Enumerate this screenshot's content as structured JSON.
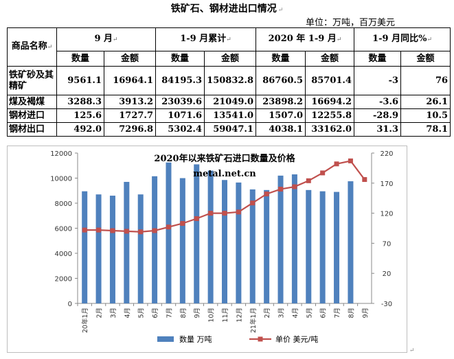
{
  "document": {
    "title": "铁矿石、钢材进出口情况",
    "unit": "单位：万吨，百万美元"
  },
  "table": {
    "header_name": "商品名称",
    "groups": [
      "9 月",
      "1-9 月累计",
      "2020 年 1-9 月",
      "1-9 月同比%"
    ],
    "sub_headers": [
      "数量",
      "金额",
      "数量",
      "金额",
      "数量",
      "金额",
      "数量",
      "金额"
    ],
    "rows": [
      {
        "name": "铁矿砂及其精矿",
        "values": [
          "9561.1",
          "16964.1",
          "84195.3",
          "150832.8",
          "86760.5",
          "85701.4",
          "-3",
          "76"
        ]
      },
      {
        "name": "煤及褐煤",
        "values": [
          "3288.3",
          "3913.2",
          "23039.6",
          "21049.0",
          "23898.2",
          "16694.2",
          "-3.6",
          "26.1"
        ]
      },
      {
        "name": "钢材进口",
        "values": [
          "125.6",
          "1727.7",
          "1071.6",
          "13541.0",
          "1507.0",
          "12255.8",
          "-28.9",
          "10.5"
        ]
      },
      {
        "name": "钢材出口",
        "values": [
          "492.0",
          "7296.8",
          "5302.4",
          "59047.1",
          "4038.1",
          "33162.0",
          "31.3",
          "78.1"
        ]
      }
    ]
  },
  "chart_data": {
    "type": "bar",
    "title": "2020年以来铁矿石进口数量及价格",
    "watermark": "metal.net.cn",
    "categories": [
      "20年1月",
      "2月",
      "3月",
      "4月",
      "5月",
      "6月",
      "7月",
      "8月",
      "9月",
      "10月",
      "11月",
      "12月",
      "21年1月",
      "2月",
      "3月",
      "4月",
      "5月",
      "6月",
      "7月",
      "8月",
      "9月"
    ],
    "series": [
      {
        "name": "数量 万吨",
        "type": "bar",
        "axis": "left",
        "color": "#4f81bd",
        "values": [
          8950,
          8700,
          8600,
          9700,
          8700,
          10150,
          11250,
          10000,
          11100,
          10600,
          9850,
          9650,
          9100,
          9050,
          10200,
          10300,
          9050,
          8950,
          8900,
          9750,
          null
        ]
      },
      {
        "name": "单价 美元/吨",
        "type": "line",
        "axis": "right",
        "color": "#c0504d",
        "values": [
          92,
          92,
          91,
          90,
          89,
          91,
          97,
          103,
          111,
          120,
          120,
          122,
          137,
          152,
          160,
          164,
          174,
          187,
          202,
          207,
          176
        ]
      }
    ],
    "y_left": {
      "min": 0,
      "max": 12000,
      "ticks": [
        0,
        2000,
        4000,
        6000,
        8000,
        10000,
        12000
      ]
    },
    "y_right": {
      "min": -30,
      "max": 220,
      "ticks": [
        -30,
        20,
        70,
        120,
        170,
        220
      ]
    },
    "grid": false,
    "legend_position": "bottom"
  }
}
